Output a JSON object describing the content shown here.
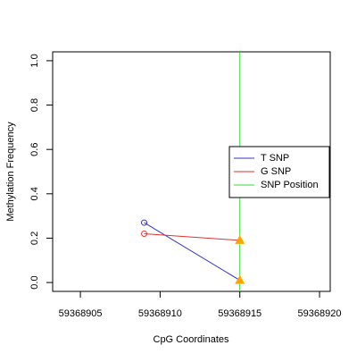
{
  "chart_data": {
    "type": "line",
    "xlabel": "CpG Coordinates",
    "ylabel": "Methylation Frequency",
    "xlim": [
      59368903.26,
      59368920.67
    ],
    "ylim": [
      -0.04,
      1.04
    ],
    "xticks": [
      59368905,
      59368910,
      59368915,
      59368920
    ],
    "yticks": [
      {
        "value": 0,
        "label": "0.0"
      },
      0.2,
      0.4,
      0.6,
      0.8,
      {
        "value": 1,
        "label": "1.0"
      }
    ],
    "series": [
      {
        "name": "T SNP",
        "color": "#3333cc",
        "x": [
          59368909,
          59368915
        ],
        "values": [
          0.27,
          0.01
        ]
      },
      {
        "name": "G SNP",
        "color": "#dd3333",
        "x": [
          59368909,
          59368915
        ],
        "values": [
          0.22,
          0.19
        ]
      }
    ],
    "vlines": [
      {
        "name": "SNP Position",
        "color": "#33dd33",
        "x": 59368915
      }
    ],
    "snp_marker_color": "#ffa500",
    "legend": "right"
  }
}
